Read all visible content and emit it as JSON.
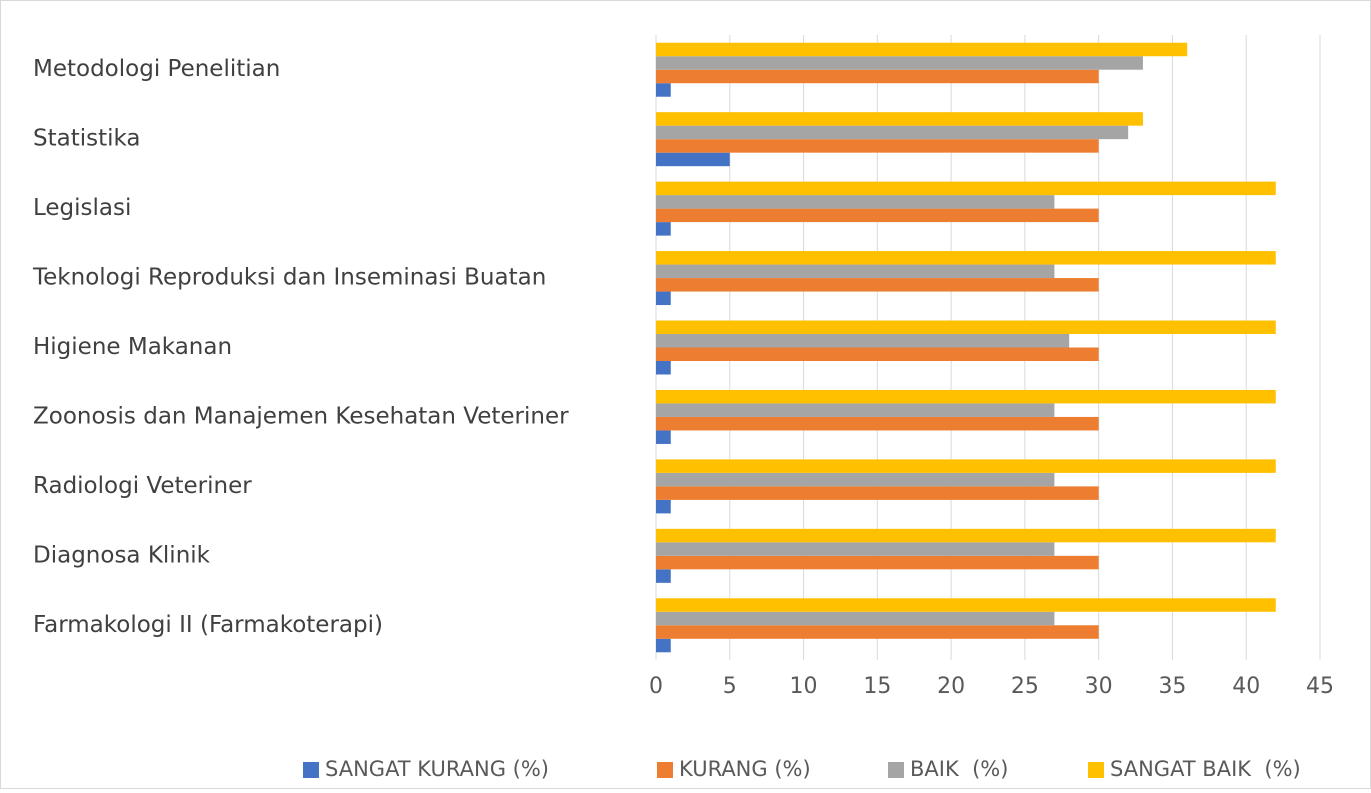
{
  "chart_data": {
    "type": "bar",
    "orientation": "horizontal",
    "categories": [
      "Metodologi Penelitian",
      "Statistika",
      "Legislasi",
      "Teknologi Reproduksi dan Inseminasi Buatan",
      "Higiene Makanan",
      "Zoonosis dan Manajemen Kesehatan Veteriner",
      "Radiologi Veteriner",
      "Diagnosa Klinik",
      "Farmakologi II (Farmakoterapi)"
    ],
    "series": [
      {
        "name": "SANGAT KURANG (%)",
        "color": "#4472c4",
        "values": [
          1,
          5,
          1,
          1,
          1,
          1,
          1,
          1,
          1
        ]
      },
      {
        "name": "KURANG (%)",
        "color": "#ed7d31",
        "values": [
          30,
          30,
          30,
          30,
          30,
          30,
          30,
          30,
          30
        ]
      },
      {
        "name": "BAIK  (%)",
        "color": "#a5a5a5",
        "values": [
          33,
          32,
          27,
          27,
          28,
          27,
          27,
          27,
          27
        ]
      },
      {
        "name": "SANGAT BAIK  (%)",
        "color": "#ffc000",
        "values": [
          36,
          33,
          42,
          42,
          42,
          42,
          42,
          42,
          42
        ]
      }
    ],
    "xlim": [
      0,
      45
    ],
    "xticks": [
      0,
      5,
      10,
      15,
      20,
      25,
      30,
      35,
      40,
      45
    ],
    "grid": true,
    "legend": "bottom"
  }
}
